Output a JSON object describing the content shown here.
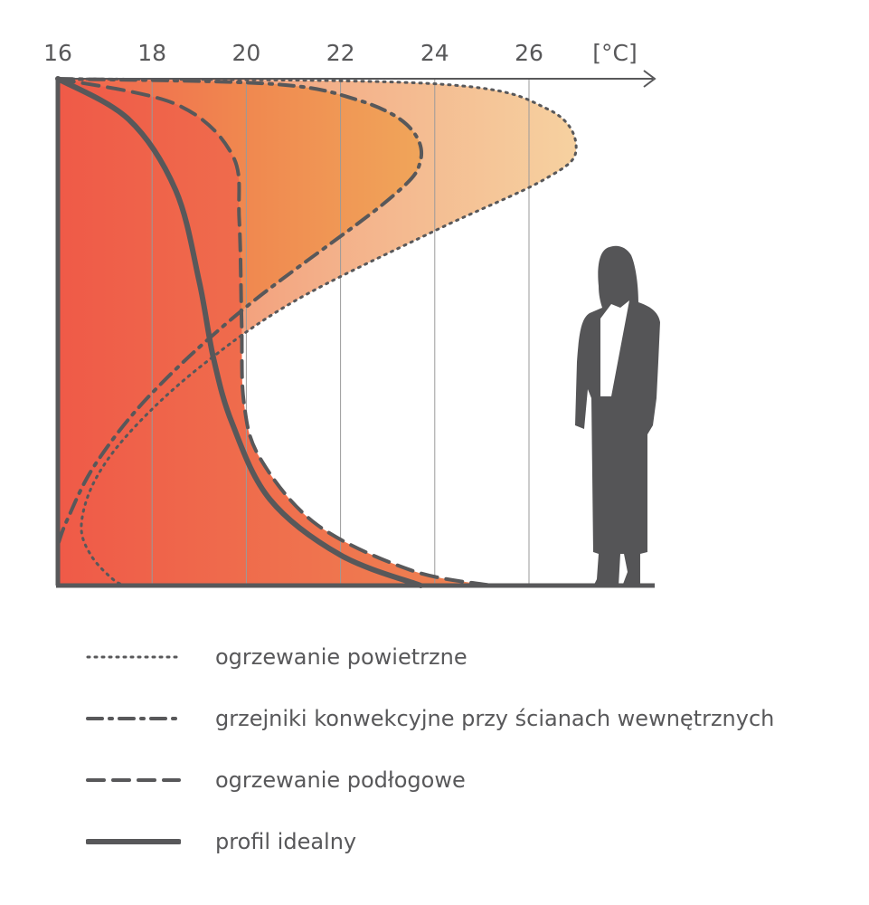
{
  "chart_data": {
    "type": "line",
    "xlabel_unit": "[°C]",
    "x_ticks": [
      16,
      18,
      20,
      22,
      24,
      26
    ],
    "xlim": [
      16,
      28.5
    ],
    "grid": true,
    "legend_placement": "bottom",
    "series": [
      {
        "name": "ogrzewanie powietrzne",
        "style": "dotted",
        "color": "#58585a",
        "fill": "#f6cc9a",
        "x": [
          16,
          24,
          26.4,
          27.0,
          26.3,
          24,
          21,
          19,
          17.6,
          16.8,
          16.5,
          16.7,
          17.2,
          17.5
        ],
        "y": [
          1.0,
          0.99,
          0.94,
          0.86,
          0.8,
          0.7,
          0.56,
          0.43,
          0.31,
          0.21,
          0.12,
          0.06,
          0.01,
          0.0
        ]
      },
      {
        "name": "grzejniki konwekcyjne przy ścianach wewnętrznych",
        "style": "dashdot",
        "color": "#58585a",
        "fill": "#f0a460",
        "x": [
          16,
          20.5,
          22.3,
          23.4,
          23.7,
          23.0,
          20.0,
          18.0,
          16.8,
          16.2,
          16.0
        ],
        "y": [
          1.0,
          0.99,
          0.96,
          0.91,
          0.84,
          0.76,
          0.55,
          0.38,
          0.24,
          0.13,
          0.08
        ]
      },
      {
        "name": "ogrzewanie podłogowe",
        "style": "dashed",
        "color": "#58585a",
        "fill": "#ef8050",
        "x": [
          16,
          18.5,
          19.7,
          19.85,
          19.9,
          19.95,
          20.3,
          21.5,
          23.5,
          25.2
        ],
        "y": [
          1.0,
          0.95,
          0.85,
          0.72,
          0.52,
          0.36,
          0.25,
          0.12,
          0.03,
          0.0
        ]
      },
      {
        "name": "profil idealny",
        "style": "solid",
        "color": "#58585a",
        "x": [
          16,
          17.5,
          18.5,
          19.0,
          19.3,
          19.7,
          20.5,
          22,
          23.7
        ],
        "y": [
          1.0,
          0.92,
          0.78,
          0.6,
          0.45,
          0.32,
          0.17,
          0.06,
          0.0
        ]
      }
    ]
  },
  "colors": {
    "axis": "#58585a",
    "grid": "#9a9a9a",
    "silhouette": "#555557"
  },
  "icons": [
    "person-silhouette-icon"
  ]
}
